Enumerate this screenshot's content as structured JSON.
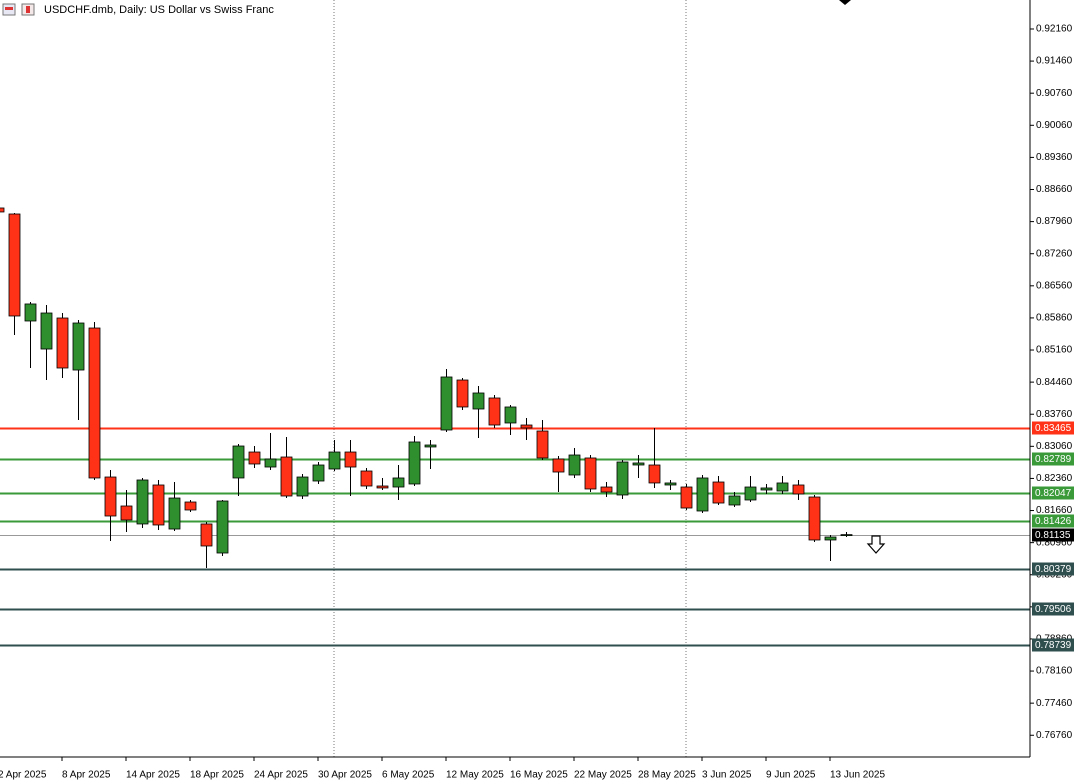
{
  "chart_data": {
    "type": "candlestick",
    "title": "USDCHF.dmb, Daily:  US Dollar vs Swiss Franc",
    "categories": [
      "2 Apr 2025",
      null,
      null,
      null,
      "8 Apr 2025",
      null,
      null,
      null,
      "14 Apr 2025",
      null,
      null,
      null,
      "18 Apr 2025",
      null,
      null,
      null,
      "24 Apr 2025",
      null,
      null,
      null,
      "30 Apr 2025",
      null,
      null,
      null,
      "6 May 2025",
      null,
      null,
      null,
      "12 May 2025",
      null,
      null,
      null,
      "16 May 2025",
      null,
      null,
      null,
      "22 May 2025",
      null,
      null,
      null,
      "28 May 2025",
      null,
      null,
      null,
      "3 Jun 2025",
      null,
      null,
      null,
      "9 Jun 2025",
      null,
      null,
      null,
      "13 Jun 2025",
      null
    ],
    "open": [
      0.88257,
      0.88126,
      0.85793,
      0.85182,
      0.85858,
      0.84724,
      0.8564,
      0.82391,
      0.81759,
      0.81367,
      0.82217,
      0.81257,
      0.81846,
      0.81367,
      0.80734,
      0.8237,
      0.82936,
      0.82609,
      0.82827,
      0.81977,
      0.82304,
      0.82566,
      0.82936,
      0.82522,
      0.82195,
      0.82173,
      0.82239,
      0.83046,
      0.83416,
      0.84506,
      0.83874,
      0.84114,
      0.83569,
      0.83525,
      0.83394,
      0.82784,
      0.82435,
      0.82806,
      0.82173,
      0.81999,
      0.82653,
      0.82653,
      0.82217,
      0.82173,
      0.8165,
      0.82282,
      0.81781,
      0.8189,
      0.82108,
      0.82086,
      0.82217,
      0.81955,
      0.81018,
      0.8112
    ],
    "high": [
      0.88301,
      0.88148,
      0.86207,
      0.86142,
      0.85967,
      0.85815,
      0.85771,
      0.82544,
      0.82108,
      0.8237,
      0.82326,
      0.82282,
      0.8189,
      0.8141,
      0.8189,
      0.83111,
      0.83067,
      0.83351,
      0.83264,
      0.82457,
      0.82718,
      0.83198,
      0.83198,
      0.82588,
      0.8237,
      0.82653,
      0.83285,
      0.83198,
      0.84746,
      0.8455,
      0.84376,
      0.84179,
      0.83961,
      0.83678,
      0.83634,
      0.82849,
      0.83024,
      0.82871,
      0.82282,
      0.82762,
      0.82871,
      0.8346,
      0.82326,
      0.82239,
      0.82435,
      0.82413,
      0.82064,
      0.82413,
      0.82239,
      0.82413,
      0.82326,
      0.81999,
      0.81127,
      0.81192
    ],
    "low": [
      0.88148,
      0.85488,
      0.84768,
      0.84506,
      0.8455,
      0.83634,
      0.82326,
      0.80996,
      0.81192,
      0.81279,
      0.81236,
      0.81214,
      0.81628,
      0.80407,
      0.80669,
      0.81977,
      0.82588,
      0.82544,
      0.81933,
      0.81912,
      0.82239,
      0.82522,
      0.81977,
      0.8213,
      0.82108,
      0.8189,
      0.82195,
      0.82566,
      0.83373,
      0.83852,
      0.83242,
      0.8346,
      0.83307,
      0.83198,
      0.82762,
      0.82064,
      0.8237,
      0.82064,
      0.81955,
      0.81912,
      0.8237,
      0.82152,
      0.82108,
      0.81672,
      0.81606,
      0.81781,
      0.81737,
      0.81846,
      0.82021,
      0.82021,
      0.8189,
      0.80974,
      0.8056,
      0.81083
    ],
    "close": [
      0.8817,
      0.85902,
      0.86164,
      0.85967,
      0.84768,
      0.85749,
      0.8237,
      0.81541,
      0.81454,
      0.82326,
      0.81345,
      0.81933,
      0.81672,
      0.80887,
      0.81868,
      0.83067,
      0.82675,
      0.82784,
      0.81977,
      0.82391,
      0.82653,
      0.82936,
      0.82609,
      0.82195,
      0.82152,
      0.8237,
      0.83155,
      0.83089,
      0.84572,
      0.83918,
      0.84223,
      0.83525,
      0.83918,
      0.8346,
      0.82806,
      0.825,
      0.82871,
      0.8213,
      0.82064,
      0.82718,
      0.82697,
      0.82261,
      0.82261,
      0.81715,
      0.8237,
      0.81824,
      0.81977,
      0.82173,
      0.82152,
      0.82261,
      0.82021,
      0.81018,
      0.81083,
      0.81135
    ],
    "up_color": "#2f8f2f",
    "down_color": "#ff3218",
    "ylim": [
      0.76286,
      0.92792
    ],
    "yticks": [
      {
        "value": 0.9216,
        "label": "0.92160"
      },
      {
        "value": 0.9146,
        "label": "0.91460"
      },
      {
        "value": 0.9076,
        "label": "0.90760"
      },
      {
        "value": 0.9006,
        "label": "0.90060"
      },
      {
        "value": 0.8936,
        "label": "0.89360"
      },
      {
        "value": 0.8866,
        "label": "0.88660"
      },
      {
        "value": 0.8796,
        "label": "0.87960"
      },
      {
        "value": 0.8726,
        "label": "0.87260"
      },
      {
        "value": 0.8656,
        "label": "0.86560"
      },
      {
        "value": 0.8586,
        "label": "0.85860"
      },
      {
        "value": 0.8516,
        "label": "0.85160"
      },
      {
        "value": 0.8446,
        "label": "0.84460"
      },
      {
        "value": 0.8376,
        "label": "0.83760"
      },
      {
        "value": 0.8306,
        "label": "0.83060"
      },
      {
        "value": 0.8236,
        "label": "0.82360"
      },
      {
        "value": 0.8166,
        "label": "0.81660"
      },
      {
        "value": 0.8096,
        "label": "0.80960"
      },
      {
        "value": 0.8026,
        "label": "0.80260"
      },
      {
        "value": 0.7956,
        "label": "0.79560"
      },
      {
        "value": 0.7886,
        "label": "0.78860"
      },
      {
        "value": 0.7816,
        "label": "0.78160"
      },
      {
        "value": 0.7746,
        "label": "0.77460"
      },
      {
        "value": 0.7676,
        "label": "0.76760"
      }
    ],
    "levels": [
      {
        "value": 0.83465,
        "color": "#ff3218"
      },
      {
        "value": 0.82789,
        "color": "#3a9a3a"
      },
      {
        "value": 0.82047,
        "color": "#3a9a3a"
      },
      {
        "value": 0.81426,
        "color": "#3a9a3a"
      },
      {
        "value": 0.80379,
        "color": "#2f4f4f"
      },
      {
        "value": 0.79506,
        "color": "#2f4f4f"
      },
      {
        "value": 0.78739,
        "color": "#2f4f4f"
      }
    ],
    "current_price": 0.81135
  }
}
